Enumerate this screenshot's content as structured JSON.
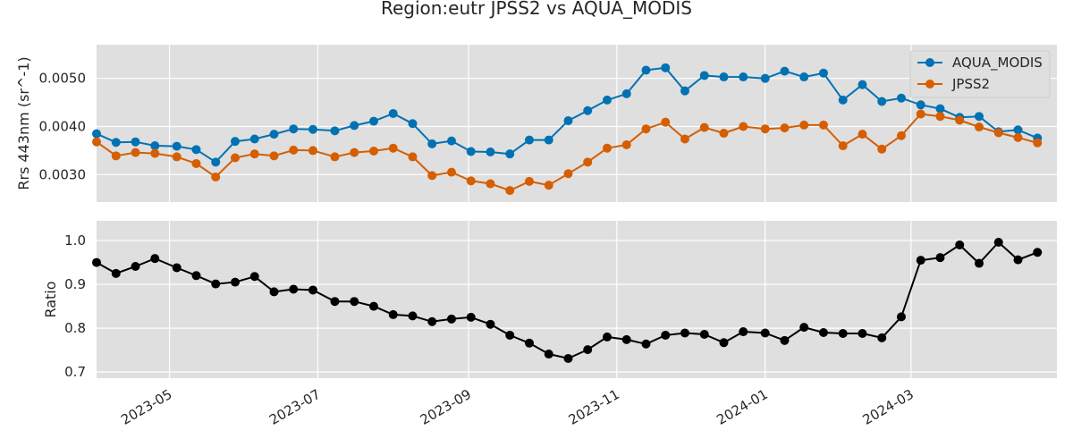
{
  "chart_data": [
    {
      "type": "line",
      "title": "Region:eutr JPSS2 vs AQUA_MODIS",
      "ylabel": "Rrs 443nm (sr^-1)",
      "ylim": [
        0.00243,
        0.0057
      ],
      "yticks": [
        0.003,
        0.004,
        0.005
      ],
      "ytick_labels": [
        "0.0030",
        "0.0040",
        "0.0050"
      ],
      "xlim": [
        "2023-04-01",
        "2024-04-30"
      ],
      "grid": true,
      "legend_position": "top-right",
      "x": [
        "2023-04-01",
        "2023-04-09",
        "2023-04-17",
        "2023-04-25",
        "2023-05-04",
        "2023-05-12",
        "2023-05-20",
        "2023-05-28",
        "2023-06-05",
        "2023-06-13",
        "2023-06-21",
        "2023-06-29",
        "2023-07-08",
        "2023-07-16",
        "2023-07-24",
        "2023-08-01",
        "2023-08-09",
        "2023-08-17",
        "2023-08-25",
        "2023-09-02",
        "2023-09-10",
        "2023-09-18",
        "2023-09-26",
        "2023-10-04",
        "2023-10-12",
        "2023-10-20",
        "2023-10-28",
        "2023-11-05",
        "2023-11-13",
        "2023-11-21",
        "2023-11-29",
        "2023-12-07",
        "2023-12-15",
        "2023-12-23",
        "2024-01-01",
        "2024-01-09",
        "2024-01-17",
        "2024-01-25",
        "2024-02-02",
        "2024-02-10",
        "2024-02-18",
        "2024-02-26",
        "2024-03-05",
        "2024-03-13",
        "2024-03-21",
        "2024-03-29",
        "2024-04-06",
        "2024-04-14",
        "2024-04-22"
      ],
      "series": [
        {
          "name": "AQUA_MODIS",
          "color": "#0072b2",
          "values": [
            0.00385,
            0.00367,
            0.00368,
            0.0036,
            0.00359,
            0.00352,
            0.00326,
            0.00369,
            0.00374,
            0.00384,
            0.00395,
            0.00394,
            0.00391,
            0.00402,
            0.00411,
            0.00427,
            0.00406,
            0.00364,
            0.0037,
            0.00348,
            0.00347,
            0.00343,
            0.00372,
            0.00372,
            0.00412,
            0.00433,
            0.00455,
            0.00468,
            0.00517,
            0.00522,
            0.00474,
            0.00506,
            0.00503,
            0.00503,
            0.005,
            0.00515,
            0.00503,
            0.00511,
            0.00455,
            0.00487,
            0.00452,
            0.00459,
            0.00445,
            0.00437,
            0.00419,
            0.00421,
            0.00389,
            0.00393,
            0.00376
          ]
        },
        {
          "name": "JPSS2",
          "color": "#d55e00",
          "values": [
            0.00368,
            0.00339,
            0.00346,
            0.00344,
            0.00337,
            0.00323,
            0.00295,
            0.00335,
            0.00343,
            0.00339,
            0.00351,
            0.0035,
            0.00337,
            0.00346,
            0.00349,
            0.00355,
            0.00337,
            0.00298,
            0.00305,
            0.00287,
            0.00281,
            0.00267,
            0.00286,
            0.00278,
            0.00302,
            0.00326,
            0.00355,
            0.00362,
            0.00395,
            0.00409,
            0.00374,
            0.00398,
            0.00386,
            0.004,
            0.00395,
            0.00397,
            0.00403,
            0.00403,
            0.0036,
            0.00384,
            0.00353,
            0.00381,
            0.00426,
            0.00421,
            0.00413,
            0.00399,
            0.00387,
            0.00377,
            0.00366
          ]
        }
      ]
    },
    {
      "type": "line",
      "ylabel": "Ratio",
      "ylim": [
        0.686,
        1.045
      ],
      "yticks": [
        0.7,
        0.8,
        0.9,
        1.0
      ],
      "ytick_labels": [
        "0.7",
        "0.8",
        "0.9",
        "1.0"
      ],
      "xlim": [
        "2023-04-01",
        "2024-04-30"
      ],
      "xticks": [
        "2023-05-01",
        "2023-07-01",
        "2023-09-01",
        "2023-11-01",
        "2024-01-01",
        "2024-03-01"
      ],
      "xtick_labels": [
        "2023-05",
        "2023-07",
        "2023-09",
        "2023-11",
        "2024-01",
        "2024-03"
      ],
      "grid": true,
      "x": [
        "2023-04-01",
        "2023-04-09",
        "2023-04-17",
        "2023-04-25",
        "2023-05-04",
        "2023-05-12",
        "2023-05-20",
        "2023-05-28",
        "2023-06-05",
        "2023-06-13",
        "2023-06-21",
        "2023-06-29",
        "2023-07-08",
        "2023-07-16",
        "2023-07-24",
        "2023-08-01",
        "2023-08-09",
        "2023-08-17",
        "2023-08-25",
        "2023-09-02",
        "2023-09-10",
        "2023-09-18",
        "2023-09-26",
        "2023-10-04",
        "2023-10-12",
        "2023-10-20",
        "2023-10-28",
        "2023-11-05",
        "2023-11-13",
        "2023-11-21",
        "2023-11-29",
        "2023-12-07",
        "2023-12-15",
        "2023-12-23",
        "2024-01-01",
        "2024-01-09",
        "2024-01-17",
        "2024-01-25",
        "2024-02-02",
        "2024-02-10",
        "2024-02-18",
        "2024-02-26",
        "2024-03-05",
        "2024-03-13",
        "2024-03-21",
        "2024-03-29",
        "2024-04-06",
        "2024-04-14",
        "2024-04-22"
      ],
      "series": [
        {
          "color": "#000000",
          "values": [
            0.95,
            0.925,
            0.941,
            0.959,
            0.938,
            0.92,
            0.901,
            0.905,
            0.918,
            0.883,
            0.889,
            0.887,
            0.861,
            0.861,
            0.85,
            0.831,
            0.828,
            0.815,
            0.821,
            0.825,
            0.809,
            0.784,
            0.766,
            0.741,
            0.731,
            0.751,
            0.78,
            0.774,
            0.764,
            0.784,
            0.789,
            0.786,
            0.767,
            0.792,
            0.789,
            0.772,
            0.802,
            0.79,
            0.788,
            0.788,
            0.778,
            0.826,
            0.955,
            0.961,
            0.99,
            0.948,
            0.996,
            0.956,
            0.973
          ]
        }
      ]
    }
  ]
}
